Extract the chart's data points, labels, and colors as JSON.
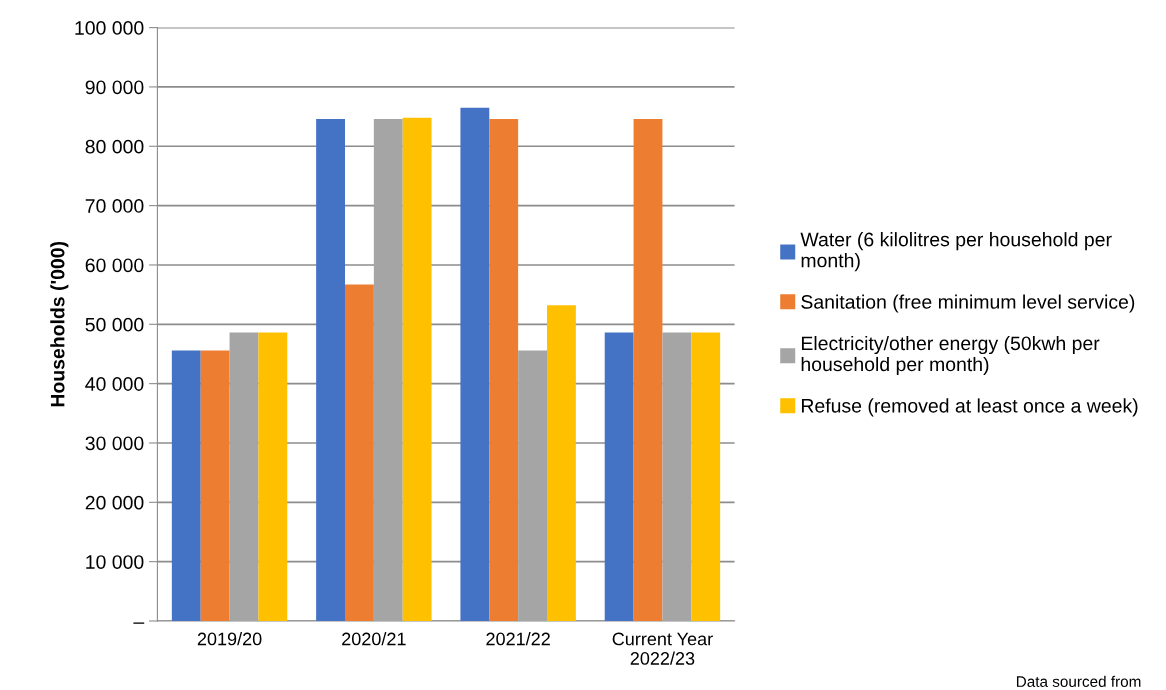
{
  "chart_data": {
    "type": "bar",
    "ylabel": "Households ('000)",
    "categories": [
      "2019/20",
      "2020/21",
      "2021/22",
      "Current Year\n2022/23"
    ],
    "series": [
      {
        "name": "Water (6 kilolitres per household per\nmonth)",
        "color": "#4472c4",
        "values": [
          45600,
          84600,
          86500,
          48600
        ]
      },
      {
        "name": "Sanitation (free minimum level service)",
        "color": "#ed7d31",
        "values": [
          45600,
          56700,
          84600,
          84600
        ]
      },
      {
        "name": "Electricity/other energy (50kwh per\nhousehold per month)",
        "color": "#a5a5a5",
        "values": [
          48600,
          84600,
          45600,
          48600
        ]
      },
      {
        "name": "Refuse (removed at least once a week)",
        "color": "#ffc000",
        "values": [
          48600,
          84800,
          53200,
          48600
        ]
      }
    ],
    "ylim": [
      0,
      100000
    ],
    "yticks": [
      {
        "value": 0,
        "label": "–"
      },
      {
        "value": 10000,
        "label": "10 000"
      },
      {
        "value": 20000,
        "label": "20 000"
      },
      {
        "value": 30000,
        "label": "30 000"
      },
      {
        "value": 40000,
        "label": "40 000"
      },
      {
        "value": 50000,
        "label": "50 000"
      },
      {
        "value": 60000,
        "label": "60 000"
      },
      {
        "value": 70000,
        "label": "70 000"
      },
      {
        "value": 80000,
        "label": "80 000"
      },
      {
        "value": 90000,
        "label": "90 000"
      },
      {
        "value": 100000,
        "label": "100 000"
      }
    ],
    "grid": "y",
    "legend": "right",
    "annotations": [
      "Data sourced from"
    ]
  }
}
